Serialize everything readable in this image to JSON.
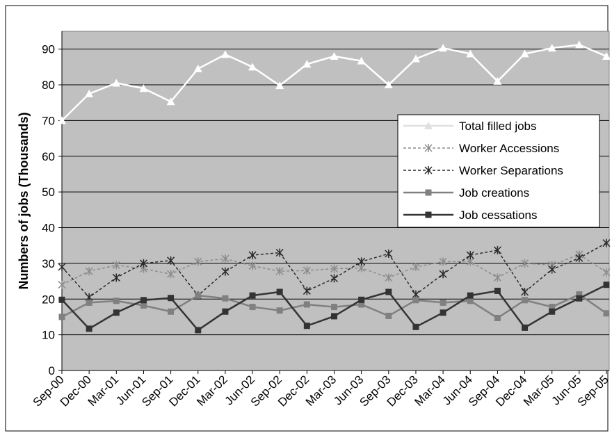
{
  "chart_data": {
    "type": "line",
    "y_label": "Numbers of jobs (Thousands)",
    "categories": [
      "Sep-00",
      "Dec-00",
      "Mar-01",
      "Jun-01",
      "Sep-01",
      "Dec-01",
      "Mar-02",
      "Jun-02",
      "Sep-02",
      "Dec-02",
      "Mar-03",
      "Jun-03",
      "Sep-03",
      "Dec-03",
      "Mar-04",
      "Jun-04",
      "Sep-04",
      "Dec-04",
      "Mar-05",
      "Jun-05",
      "Sep-05"
    ],
    "series": [
      {
        "name": "Total filled jobs",
        "color": "#ffffff",
        "marker": "triangle",
        "dashed": false,
        "values": [
          70,
          77.5,
          80.5,
          79,
          75.3,
          84.5,
          88.5,
          85,
          79.8,
          85.8,
          88,
          86.7,
          80,
          87.3,
          90.3,
          88.7,
          81,
          88.7,
          90.3,
          91.2,
          88
        ]
      },
      {
        "name": "Worker Accessions",
        "color": "#8c8c8c",
        "marker": "asterisk",
        "dashed": true,
        "values": [
          24,
          27.8,
          29.5,
          28.5,
          27,
          30.5,
          31.3,
          29.3,
          27.8,
          28,
          28.5,
          28.7,
          26,
          29,
          30.5,
          30.5,
          26,
          30,
          29.5,
          32.5,
          27.5
        ]
      },
      {
        "name": "Worker Separations",
        "color": "#2a2a2a",
        "marker": "asterisk",
        "dashed": true,
        "values": [
          29,
          20.5,
          26,
          30,
          30.8,
          21,
          27.7,
          32.3,
          33,
          22.3,
          25.8,
          30.5,
          32.7,
          21.3,
          27,
          32.3,
          33.7,
          22,
          28.3,
          31.5,
          35.7
        ]
      },
      {
        "name": "Job creations",
        "color": "#808080",
        "marker": "square",
        "dashed": false,
        "values": [
          15,
          19,
          19.5,
          18.2,
          16.5,
          21,
          20.2,
          17.8,
          16.8,
          18.5,
          17.8,
          18.5,
          15.3,
          19.7,
          19,
          19.5,
          14.7,
          19.7,
          17.8,
          21.3,
          16
        ]
      },
      {
        "name": "Job cessations",
        "color": "#333333",
        "marker": "square",
        "dashed": false,
        "values": [
          19.8,
          11.7,
          16.2,
          19.7,
          20.3,
          11.3,
          16.5,
          21,
          22,
          12.5,
          15.2,
          19.8,
          22,
          12.2,
          16.2,
          21,
          22.3,
          12,
          16.5,
          20.2,
          24
        ]
      }
    ],
    "ylim": [
      0,
      95
    ],
    "yticks": [
      0,
      10,
      20,
      30,
      40,
      50,
      60,
      70,
      80,
      90
    ],
    "grid": true,
    "legend": "right"
  }
}
